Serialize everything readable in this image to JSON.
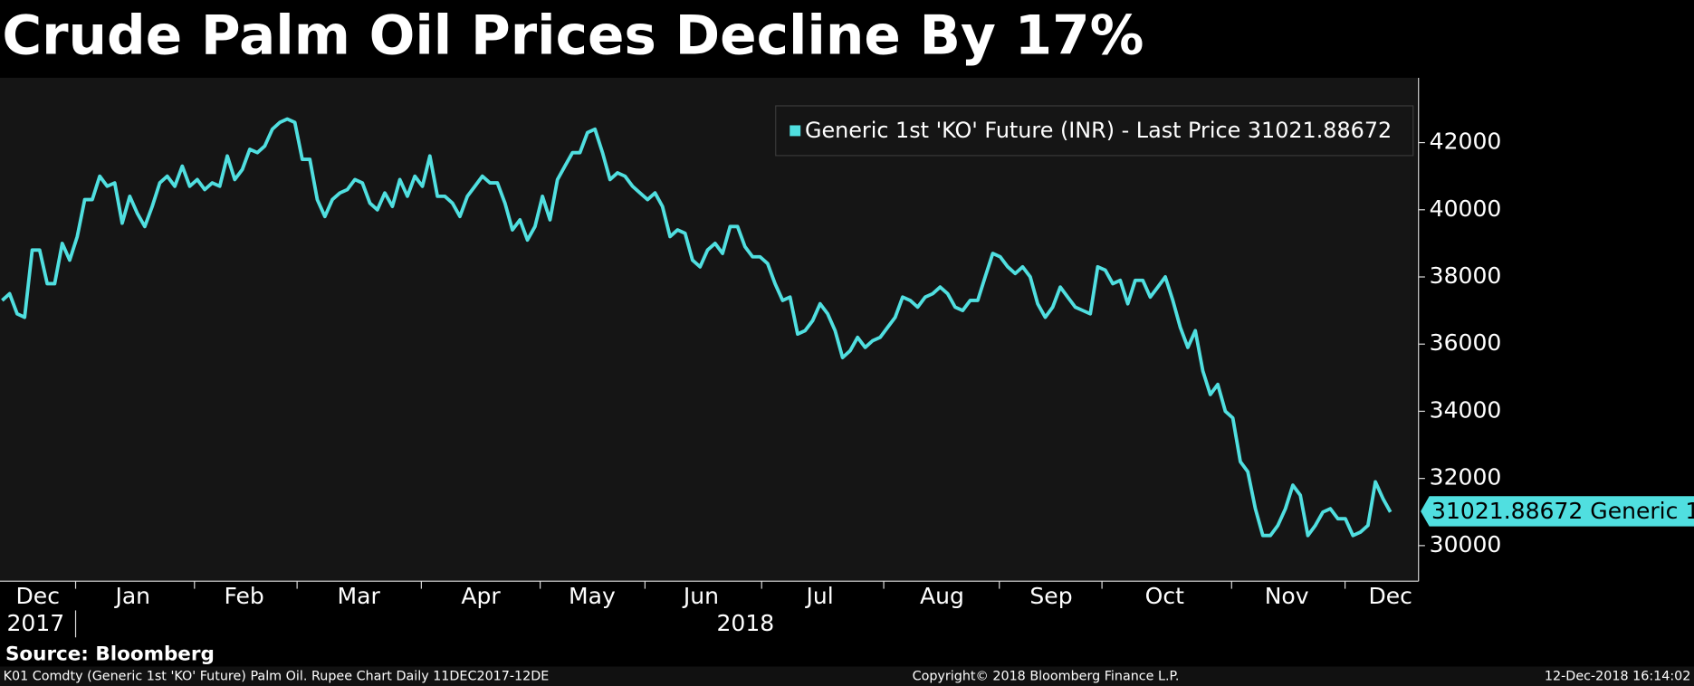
{
  "chart_data": {
    "type": "line",
    "title": "Crude Palm Oil Prices Decline By 17%",
    "series": [
      {
        "name": "Generic 1st 'KO' Future (INR) - Last Price 31021.88672",
        "color": "#50dfe0",
        "values": [
          37300,
          37500,
          36900,
          36800,
          38800,
          38800,
          37800,
          37800,
          39000,
          38500,
          39200,
          40300,
          40300,
          41000,
          40700,
          40800,
          39600,
          40400,
          39900,
          39500,
          40100,
          40800,
          41000,
          40700,
          41300,
          40700,
          40900,
          40600,
          40800,
          40700,
          41600,
          40900,
          41200,
          41800,
          41700,
          41900,
          42400,
          42600,
          42700,
          42600,
          41500,
          41500,
          40300,
          39800,
          40300,
          40500,
          40600,
          40900,
          40800,
          40200,
          40000,
          40500,
          40100,
          40900,
          40400,
          41000,
          40700,
          41600,
          40400,
          40400,
          40200,
          39800,
          40400,
          40700,
          41000,
          40800,
          40800,
          40200,
          39400,
          39700,
          39100,
          39500,
          40400,
          39700,
          40900,
          41300,
          41700,
          41700,
          42300,
          42400,
          41700,
          40900,
          41100,
          41000,
          40700,
          40500,
          40300,
          40500,
          40100,
          39200,
          39400,
          39300,
          38500,
          38300,
          38800,
          39000,
          38700,
          39500,
          39500,
          38900,
          38600,
          38600,
          38400,
          37800,
          37300,
          37400,
          36300,
          36400,
          36700,
          37200,
          36900,
          36400,
          35600,
          35800,
          36200,
          35900,
          36100,
          36200,
          36500,
          36800,
          37400,
          37300,
          37100,
          37400,
          37500,
          37700,
          37500,
          37100,
          37000,
          37300,
          37300,
          38000,
          38700,
          38600,
          38300,
          38100,
          38300,
          38000,
          37200,
          36800,
          37100,
          37700,
          37400,
          37100,
          37000,
          36900,
          38300,
          38200,
          37800,
          37900,
          37200,
          37900,
          37900,
          37400,
          37700,
          38000,
          37300,
          36500,
          35900,
          36400,
          35200,
          34500,
          34800,
          34000,
          33800,
          32500,
          32200,
          31100,
          30300,
          30300,
          30600,
          31100,
          31800,
          31500,
          30300,
          30600,
          31000,
          31100,
          30800,
          30800,
          30300,
          30400,
          30600,
          31900,
          31400,
          31000
        ]
      }
    ],
    "ylim": [
      28940,
      43930
    ],
    "yticks": [
      30000,
      32000,
      34000,
      36000,
      38000,
      40000,
      42000
    ],
    "x_axis": {
      "months": [
        "Dec",
        "Jan",
        "Feb",
        "Mar",
        "Apr",
        "May",
        "Jun",
        "Jul",
        "Aug",
        "Sep",
        "Oct",
        "Nov",
        "Dec"
      ],
      "years": [
        "2017",
        "2018"
      ]
    },
    "last_price": 31021.88672,
    "last_price_label": "31021.88672 Generic 1",
    "source": "Source: Bloomberg",
    "footer": {
      "left": "K01 Comdty (Generic 1st 'KO' Future) Palm Oil. Rupee Chart  Daily 11DEC2017-12DE",
      "center": "Copyright© 2018 Bloomberg Finance L.P.",
      "right": "12-Dec-2018 16:14:02"
    }
  }
}
